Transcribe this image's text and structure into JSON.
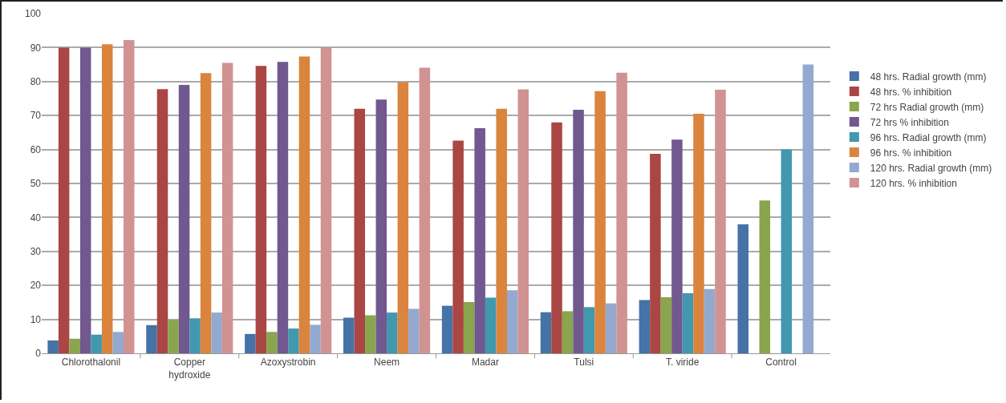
{
  "chart_data": {
    "type": "bar",
    "categories": [
      "Chlorothalonil",
      "Copper hydroxide",
      "Azoxystrobin",
      "Neem",
      "Madar",
      "Tulsi",
      "T. viride",
      "Control"
    ],
    "series": [
      {
        "name": "48 hrs. Radial growth (mm)",
        "color": "#4572a7",
        "values": [
          3.8,
          8.3,
          5.7,
          10.5,
          14,
          12.1,
          15.7,
          38
        ]
      },
      {
        "name": "48 hrs. % inhibition",
        "color": "#aa4643",
        "values": [
          90,
          77.8,
          84.6,
          72,
          62.6,
          68,
          58.7,
          null
        ]
      },
      {
        "name": "72 hrs Radial growth (mm)",
        "color": "#89a54e",
        "values": [
          4.3,
          9.8,
          6.3,
          11.2,
          15.1,
          12.4,
          16.5,
          45
        ]
      },
      {
        "name": "72 hrs % inhibition",
        "color": "#71588f",
        "values": [
          90,
          79,
          85.8,
          74.7,
          66.3,
          71.7,
          62.9,
          null
        ]
      },
      {
        "name": "96 hrs. Radial growth (mm)",
        "color": "#4198af",
        "values": [
          5.5,
          10.3,
          7.3,
          12,
          16.4,
          13.6,
          17.7,
          60
        ]
      },
      {
        "name": "96 hrs. % inhibition",
        "color": "#db843d",
        "values": [
          91,
          82.5,
          87.4,
          79.8,
          72,
          77.2,
          70.5,
          null
        ]
      },
      {
        "name": "120 hrs. Radial growth (mm)",
        "color": "#93a9cf",
        "values": [
          6.3,
          12,
          8.4,
          13.1,
          18.6,
          14.7,
          18.9,
          85
        ]
      },
      {
        "name": "120 hrs. % inhibition",
        "color": "#d09392",
        "values": [
          92.2,
          85.5,
          90,
          84.1,
          77.7,
          82.6,
          77.6,
          null
        ]
      }
    ],
    "ylim": [
      0,
      100
    ],
    "yticks": [
      0,
      10,
      20,
      30,
      40,
      50,
      60,
      70,
      80,
      90,
      100
    ],
    "grid": "y",
    "legend": "right"
  }
}
